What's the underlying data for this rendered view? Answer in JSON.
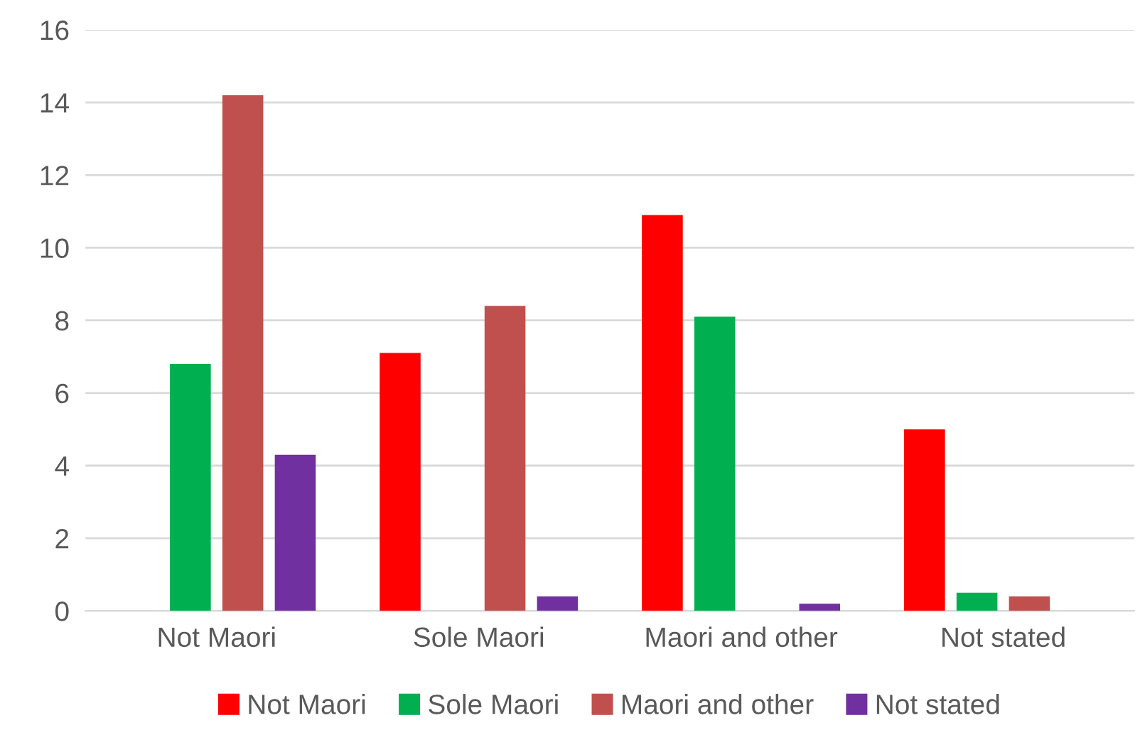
{
  "chart_data": {
    "type": "bar",
    "categories": [
      "Not Maori",
      "Sole Maori",
      "Maori and other",
      "Not stated"
    ],
    "series": [
      {
        "name": "Not Maori",
        "color": "#ff0000",
        "values": [
          0,
          7.1,
          10.9,
          5.0
        ]
      },
      {
        "name": "Sole Maori",
        "color": "#00b050",
        "values": [
          6.8,
          0,
          8.1,
          0.5
        ]
      },
      {
        "name": "Maori and other",
        "color": "#c0504d",
        "values": [
          14.2,
          8.4,
          0,
          0.4
        ]
      },
      {
        "name": "Not stated",
        "color": "#7030a0",
        "values": [
          4.3,
          0.4,
          0.2,
          0
        ]
      }
    ],
    "ylim": [
      0,
      16
    ],
    "yticks": [
      0,
      2,
      4,
      6,
      8,
      10,
      12,
      14,
      16
    ],
    "grid": "y",
    "legend": "bottom"
  }
}
